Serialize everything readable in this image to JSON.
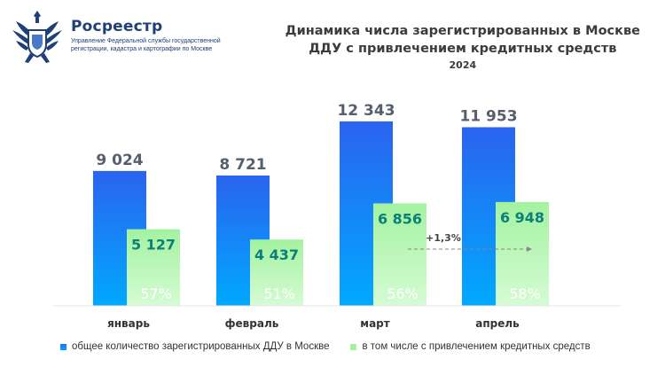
{
  "header": {
    "org_name": "Росреестр",
    "org_subtitle": "Управление Федеральной службы государственной регистрации, кадастра и картографии по Москве",
    "logo_icon": "eagle-emblem-icon"
  },
  "chart_data": {
    "type": "bar",
    "title_lines": [
      "Динамика числа зарегистрированных в Москве",
      "ДДУ с привлечением кредитных средств"
    ],
    "subtitle": "2024",
    "categories": [
      "январь",
      "февраль",
      "март",
      "апрель"
    ],
    "series": [
      {
        "name": "общее количество зарегистрированных ДДУ в Москве",
        "values": [
          9024,
          8721,
          12343,
          11953
        ],
        "labels": [
          "9 024",
          "8 721",
          "12 343",
          "11 953"
        ],
        "color": "#1a78f0"
      },
      {
        "name": "в том числе с привлечением кредитных средств",
        "values": [
          5127,
          4437,
          6856,
          6948
        ],
        "labels": [
          "5 127",
          "4 437",
          "6 856",
          "6 948"
        ],
        "color": "#9df09a"
      }
    ],
    "share_labels": [
      "57%",
      "51%",
      "56%",
      "58%"
    ],
    "annotation": {
      "text": "+1,3%",
      "from": "март",
      "to": "апрель"
    },
    "ylim": [
      0,
      14000
    ],
    "grid": false,
    "legend_position": "bottom"
  },
  "colors": {
    "bar_total_top": "#2a63ef",
    "bar_total_bottom": "#00a9ff",
    "bar_mortgage": "#a3f2a0",
    "value_total": "#565f6c",
    "value_mortgage": "#0c7f79",
    "share_text": "#ffffff",
    "title": "#3c3c3c",
    "brand": "#1f3f77"
  }
}
